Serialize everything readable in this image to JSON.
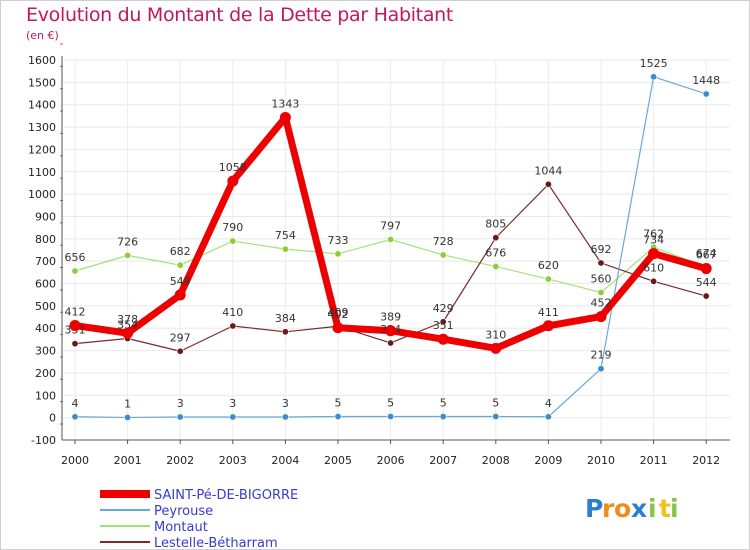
{
  "title": "Evolution du Montant de la Dette par Habitant",
  "subtitle": "(en €)",
  "logo": {
    "letters": [
      "P",
      "r",
      "o",
      "x",
      "i",
      "t",
      "i"
    ],
    "colors": [
      "#2a7fd0",
      "#f28a1c",
      "#f28a1c",
      "#2a7fd0",
      "#8bc34a",
      "#f2c21c",
      "#8bc34a"
    ]
  },
  "chart_data": {
    "type": "line",
    "title": "Evolution du Montant de la Dette par Habitant",
    "ylabel": "(en €)",
    "xlabel": "",
    "x": [
      "2000",
      "2001",
      "2002",
      "2003",
      "2004",
      "2005",
      "2006",
      "2007",
      "2008",
      "2009",
      "2010",
      "2011",
      "2012"
    ],
    "yticks": [
      "1600",
      "1500",
      "1400",
      "1300",
      "1200",
      "1100",
      "1000",
      "900",
      "800",
      "700",
      "600",
      "500",
      "400",
      "300",
      "200",
      "100",
      "0",
      "-100"
    ],
    "ylim": [
      -100,
      1600
    ],
    "grid": true,
    "legend": "bottom-left",
    "series": [
      {
        "name": "Montaut",
        "color": "#a6e07a",
        "marker": "#8bcf3a",
        "width": 1.2,
        "values": [
          656,
          726,
          682,
          790,
          754,
          733,
          797,
          728,
          676,
          620,
          560,
          762,
          674
        ],
        "labels": [
          "656",
          "726",
          "682",
          "790",
          "754",
          "733",
          "797",
          "728",
          "676",
          "620",
          "560",
          "762",
          "674"
        ]
      },
      {
        "name": "Lestelle-Bétharram",
        "color": "#7a2a2a",
        "marker": "#6b1a1a",
        "width": 1.2,
        "values": [
          331,
          354,
          297,
          410,
          384,
          409,
          334,
          429,
          805,
          1044,
          692,
          610,
          544
        ],
        "labels": [
          "331",
          "354",
          "297",
          "410",
          "384",
          "409",
          "334",
          "429",
          "805",
          "1044",
          "692",
          "610",
          "544"
        ]
      },
      {
        "name": "Peyrouse",
        "color": "#6aa8d8",
        "marker": "#3c8ccc",
        "width": 1.2,
        "values": [
          4,
          1,
          3,
          3,
          3,
          5,
          5,
          5,
          5,
          4,
          219,
          1525,
          1448
        ],
        "labels": [
          "4",
          "1",
          "3",
          "3",
          "3",
          "5",
          "5",
          "5",
          "5",
          "4",
          "219",
          "1525",
          "1448"
        ]
      },
      {
        "name": "SAINT-Pé-DE-BIGORRE",
        "color": "#ee0000",
        "marker": "#ee0000",
        "width": 7,
        "values": [
          412,
          378,
          549,
          1058,
          1343,
          402,
          389,
          351,
          310,
          411,
          452,
          734,
          667
        ],
        "labels": [
          "412",
          "378",
          "549",
          "1058",
          "1343",
          "402",
          "389",
          "351",
          "310",
          "411",
          "452",
          "734",
          "667"
        ]
      }
    ],
    "legend_entries": [
      {
        "name": "SAINT-Pé-DE-BIGORRE",
        "color": "#ee0000"
      },
      {
        "name": "Peyrouse",
        "color": "#6aa8d8"
      },
      {
        "name": "Montaut",
        "color": "#a6e07a"
      },
      {
        "name": "Lestelle-Bétharram",
        "color": "#7a2a2a"
      }
    ],
    "legend_text_color": "#3a3acc"
  }
}
